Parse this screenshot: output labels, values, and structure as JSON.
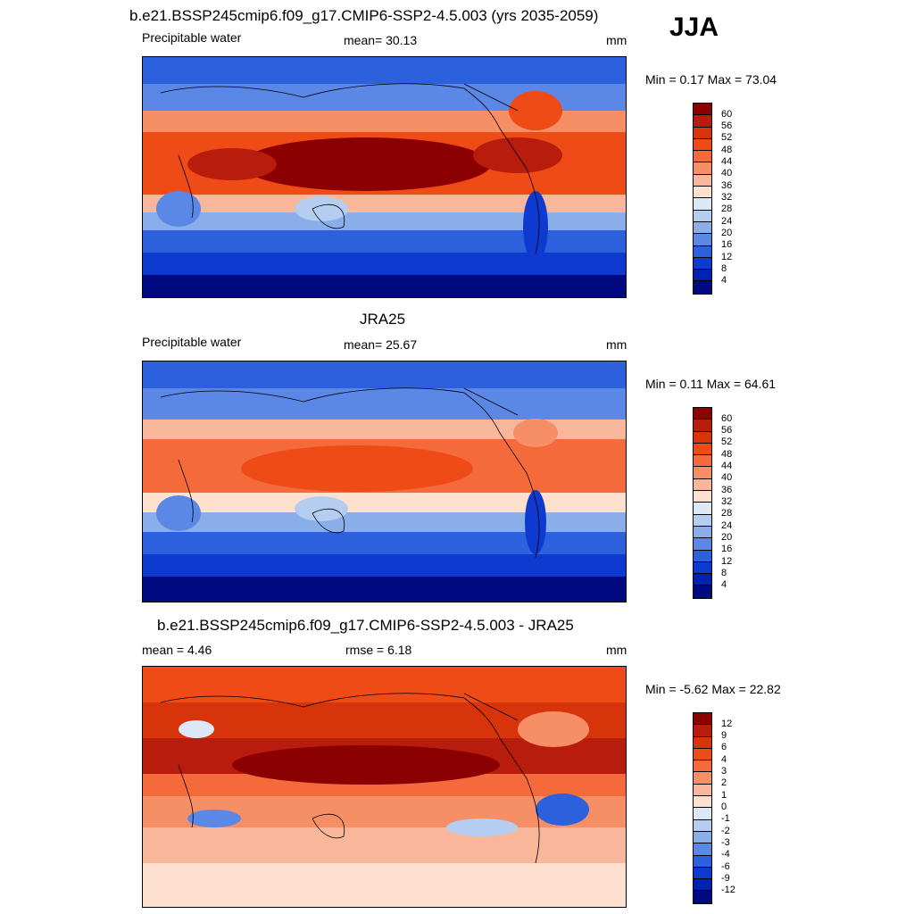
{
  "page": {
    "season": "JJA"
  },
  "panels": [
    {
      "title": "b.e21.BSSP245cmip6.f09_g17.CMIP6-SSP2-4.5.003 (yrs 2035-2059)",
      "left_label": "Precipitable water",
      "center_label": "mean=  30.13",
      "units": "mm",
      "minmax": "Min =   0.17 Max =  73.04",
      "colorbar": {
        "ticks": [
          "60",
          "56",
          "52",
          "48",
          "44",
          "40",
          "36",
          "32",
          "28",
          "24",
          "20",
          "16",
          "12",
          "8",
          "4"
        ],
        "colors": [
          "#8b0000",
          "#b71c0c",
          "#d7340b",
          "#ee4b16",
          "#f46a3a",
          "#f68f65",
          "#f8b79a",
          "#fde0cd",
          "#dce8f7",
          "#b4cdf0",
          "#8aaeea",
          "#5b88e6",
          "#2d60dd",
          "#0f3ad0",
          "#0022b0",
          "#000a80"
        ]
      },
      "map": "model"
    },
    {
      "title": "JRA25",
      "left_label": "Precipitable water",
      "center_label": "mean=  25.67",
      "units": "mm",
      "minmax": "Min =   0.11 Max =  64.61",
      "colorbar": {
        "ticks": [
          "60",
          "56",
          "52",
          "48",
          "44",
          "40",
          "36",
          "32",
          "28",
          "24",
          "20",
          "16",
          "12",
          "8",
          "4"
        ],
        "colors": [
          "#8b0000",
          "#b71c0c",
          "#d7340b",
          "#ee4b16",
          "#f46a3a",
          "#f68f65",
          "#f8b79a",
          "#fde0cd",
          "#dce8f7",
          "#b4cdf0",
          "#8aaeea",
          "#5b88e6",
          "#2d60dd",
          "#0f3ad0",
          "#0022b0",
          "#000a80"
        ]
      },
      "map": "obs"
    },
    {
      "title": "b.e21.BSSP245cmip6.f09_g17.CMIP6-SSP2-4.5.003 - JRA25",
      "left_label": "mean =   4.46",
      "center_label": "rmse =   6.18",
      "units": "mm",
      "minmax": "Min =  -5.62 Max =  22.82",
      "colorbar": {
        "ticks": [
          "12",
          "9",
          "6",
          "4",
          "3",
          "2",
          "1",
          "0",
          "-1",
          "-2",
          "-3",
          "-4",
          "-6",
          "-9",
          "-12"
        ],
        "colors": [
          "#8b0000",
          "#b71c0c",
          "#d7340b",
          "#ee4b16",
          "#f46a3a",
          "#f68f65",
          "#f8b79a",
          "#fde0cd",
          "#dce8f7",
          "#b4cdf0",
          "#8aaeea",
          "#5b88e6",
          "#2d60dd",
          "#0f3ad0",
          "#0022b0",
          "#000a80"
        ]
      },
      "map": "diff"
    }
  ]
}
